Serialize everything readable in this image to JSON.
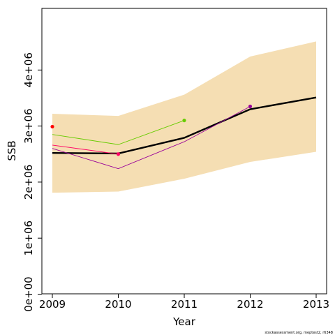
{
  "chart_data": {
    "type": "line",
    "title": "",
    "xlabel": "Year",
    "ylabel": "SSB",
    "x": [
      2009,
      2010,
      2011,
      2012,
      2013
    ],
    "xlim": [
      2008.85,
      2013.0
    ],
    "ylim": [
      0,
      5100000
    ],
    "x_ticks": [
      "2009",
      "2010",
      "2011",
      "2012",
      "2013"
    ],
    "y_ticks": [
      {
        "value": 0,
        "label": "0e+00"
      },
      {
        "value": 1000000,
        "label": "1e+06"
      },
      {
        "value": 2000000,
        "label": "2e+06"
      },
      {
        "value": 3000000,
        "label": "3e+06"
      },
      {
        "value": 4000000,
        "label": "4e+06"
      }
    ],
    "grid": false,
    "confidence_band": {
      "color": "#f5deb3",
      "lower": [
        1810000,
        1830000,
        2060000,
        2360000,
        2540000
      ],
      "upper": [
        3220000,
        3180000,
        3560000,
        4240000,
        4510000
      ]
    },
    "series": [
      {
        "color": "#000000",
        "width": 2.4,
        "x": [
          2009,
          2010,
          2011,
          2012,
          2013
        ],
        "values": [
          2520000,
          2510000,
          2790000,
          3300000,
          3510000
        ],
        "markers": false
      },
      {
        "color": "#ff0066",
        "width": 0.9,
        "x": [
          2009,
          2010
        ],
        "values": [
          2660000,
          2500000
        ],
        "end_marker": true
      },
      {
        "color": "#990099",
        "width": 0.9,
        "x": [
          2009,
          2010,
          2011,
          2012
        ],
        "values": [
          2600000,
          2240000,
          2720000,
          3350000
        ],
        "end_marker": true
      },
      {
        "color": "#66cc00",
        "width": 0.9,
        "x": [
          2009,
          2010,
          2011
        ],
        "values": [
          2850000,
          2670000,
          3100000
        ],
        "end_marker": true
      },
      {
        "color": "#ff0000",
        "width": 0.9,
        "x": [
          2009
        ],
        "values": [
          2990000
        ],
        "end_marker": true
      }
    ]
  },
  "footnote": "stockassessment.org, meptest2, r6348"
}
